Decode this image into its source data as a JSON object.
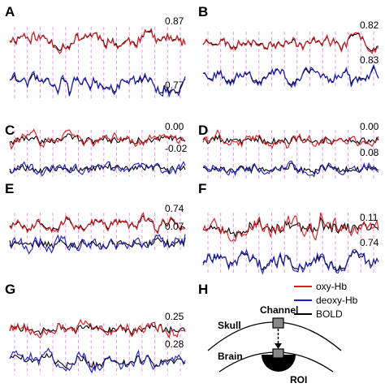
{
  "colors": {
    "oxy": "#e0191e",
    "deoxy": "#1d1dc8",
    "bold": "#000000",
    "stim": "#e59ae3"
  },
  "chart_data": [
    {
      "type": "line",
      "panel": "A",
      "oxy_corr": "0.87",
      "deoxy_corr": "0.77"
    },
    {
      "type": "line",
      "panel": "B",
      "oxy_corr": "0.82",
      "deoxy_corr": "0.83"
    },
    {
      "type": "line",
      "panel": "C",
      "oxy_corr": "0.00",
      "deoxy_corr": "-0.02"
    },
    {
      "type": "line",
      "panel": "D",
      "oxy_corr": "0.00",
      "deoxy_corr": "0.08"
    },
    {
      "type": "line",
      "panel": "E",
      "oxy_corr": "0.74",
      "deoxy_corr": "0.07"
    },
    {
      "type": "line",
      "panel": "F",
      "oxy_corr": "0.11",
      "deoxy_corr": "0.74"
    },
    {
      "type": "line",
      "panel": "G",
      "oxy_corr": "0.25",
      "deoxy_corr": "0.28"
    }
  ],
  "legend": [
    {
      "label": "oxy-Hb",
      "color": "#e0191e"
    },
    {
      "label": "deoxy-Hb",
      "color": "#1d1dc8"
    },
    {
      "label": "BOLD",
      "color": "#000000"
    }
  ],
  "schematic": {
    "label": "H",
    "channel": "Channel",
    "skull": "Skull",
    "brain": "Brain",
    "roi": "ROI"
  }
}
